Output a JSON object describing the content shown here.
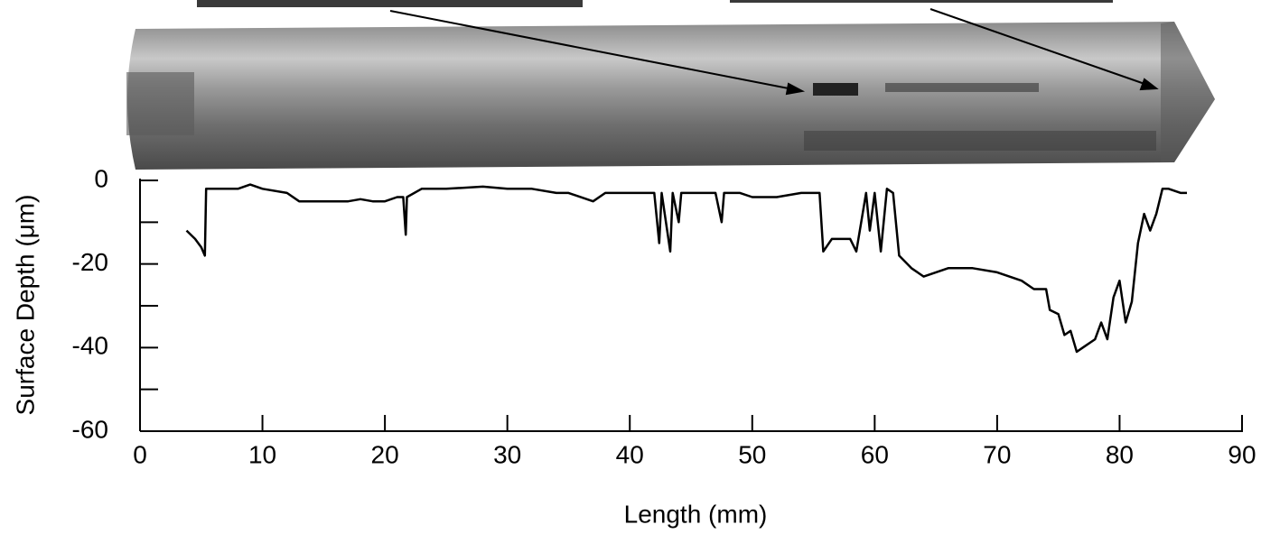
{
  "chart_data": {
    "type": "line",
    "x_label": "Length (mm)",
    "y_label": "Surface Depth (μm)",
    "xlim": [
      0,
      90
    ],
    "ylim": [
      -60,
      0
    ],
    "xticks": [
      0,
      10,
      20,
      30,
      40,
      50,
      60,
      70,
      80,
      90
    ],
    "yticks": [
      0,
      -20,
      -40,
      -60
    ],
    "yminor_ticks": [
      -10,
      -30,
      -50
    ],
    "color": "#000000",
    "x": [
      3.8,
      4.5,
      5.0,
      5.3,
      5.4,
      6,
      8,
      9,
      10,
      12,
      13,
      15,
      17,
      18,
      19,
      20,
      21,
      21.5,
      21.7,
      21.8,
      23,
      25,
      28,
      30,
      32,
      34,
      35,
      37,
      38,
      40,
      42,
      42.4,
      42.6,
      43.3,
      43.5,
      44,
      44.2,
      45,
      46,
      47,
      47.5,
      47.7,
      49,
      50,
      52,
      54,
      55.5,
      55.8,
      56.5,
      58,
      58.5,
      59.3,
      59.6,
      60,
      60.5,
      61,
      61.5,
      62,
      63,
      64,
      66,
      68,
      70,
      72,
      73,
      74,
      74.3,
      75,
      75.5,
      76,
      76.5,
      77,
      78,
      78.5,
      79,
      79.5,
      80,
      80.5,
      81,
      81.5,
      82,
      82.5,
      83,
      83.5,
      84,
      85,
      85.5
    ],
    "values": [
      -12,
      -14,
      -16,
      -18,
      -2,
      -2,
      -2,
      -1,
      -2,
      -3,
      -5,
      -5,
      -5,
      -4.5,
      -5,
      -5,
      -4,
      -4,
      -13,
      -4,
      -2,
      -2,
      -1.5,
      -2,
      -2,
      -3,
      -3,
      -5,
      -3,
      -3,
      -3,
      -15,
      -3,
      -17,
      -3,
      -10,
      -3,
      -3,
      -3,
      -3,
      -10,
      -3,
      -3,
      -4,
      -4,
      -3,
      -3,
      -17,
      -14,
      -14,
      -17,
      -3,
      -12,
      -3,
      -17,
      -2,
      -3,
      -18,
      -21,
      -23,
      -21,
      -21,
      -22,
      -24,
      -26,
      -26,
      -31,
      -32,
      -37,
      -36,
      -41,
      -40,
      -38,
      -34,
      -38,
      -28,
      -24,
      -34,
      -29,
      -15,
      -8,
      -12,
      -8,
      -2,
      -2,
      -3,
      -3
    ]
  }
}
